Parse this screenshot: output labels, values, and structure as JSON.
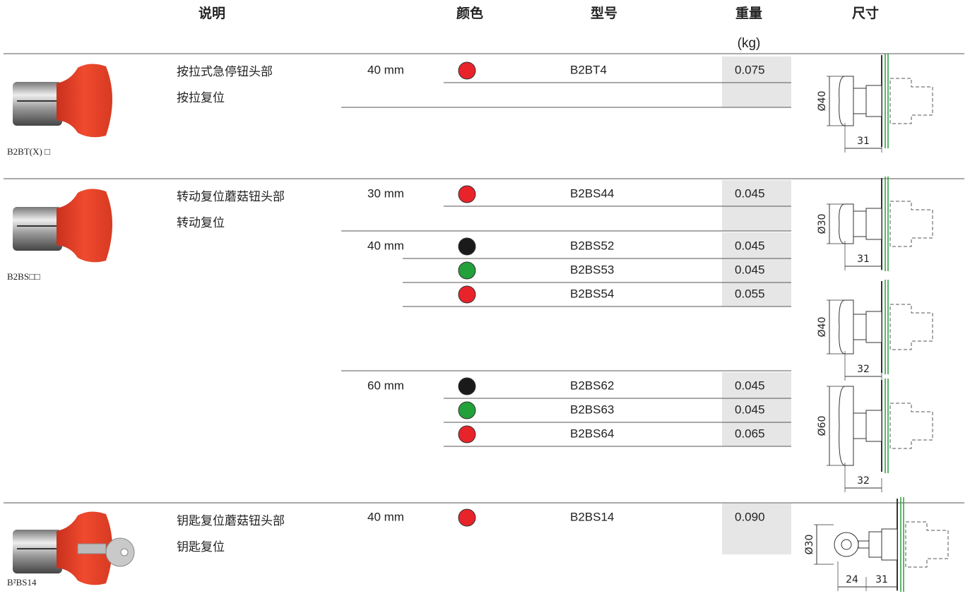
{
  "header": {
    "description": "说明",
    "color": "颜色",
    "model": "型号",
    "weight": "重量",
    "weight_unit": "(kg)",
    "dimensions": "尺寸"
  },
  "groups": [
    {
      "caption": "B2BT(X) □",
      "description": [
        "按拉式急停钮头部",
        "按拉复位"
      ],
      "sizes": [
        {
          "size": "40 mm",
          "rows": [
            {
              "color": "#e8232a",
              "model": "B2BT4",
              "weight": "0.075"
            }
          ]
        }
      ],
      "drawings": [
        {
          "labels": [
            "Ø40",
            "31"
          ]
        }
      ]
    },
    {
      "caption": "B2BS□□",
      "description": [
        "转动复位蘑菇钮头部",
        "转动复位"
      ],
      "sizes": [
        {
          "size": "30 mm",
          "rows": [
            {
              "color": "#e8232a",
              "model": "B2BS44",
              "weight": "0.045"
            }
          ]
        },
        {
          "size": "40 mm",
          "rows": [
            {
              "color": "#1a1a1a",
              "model": "B2BS52",
              "weight": "0.045"
            },
            {
              "color": "#22a03a",
              "model": "B2BS53",
              "weight": "0.045"
            },
            {
              "color": "#e8232a",
              "model": "B2BS54",
              "weight": "0.055"
            }
          ]
        },
        {
          "size": "60 mm",
          "rows": [
            {
              "color": "#1a1a1a",
              "model": "B2BS62",
              "weight": "0.045"
            },
            {
              "color": "#22a03a",
              "model": "B2BS63",
              "weight": "0.045"
            },
            {
              "color": "#e8232a",
              "model": "B2BS64",
              "weight": "0.065"
            }
          ]
        }
      ],
      "drawings": [
        {
          "labels": [
            "Ø30",
            "31"
          ]
        },
        {
          "labels": [
            "Ø40",
            "32"
          ]
        },
        {
          "labels": [
            "Ø60",
            "32"
          ]
        }
      ]
    },
    {
      "caption": "B²BS14",
      "description": [
        "钥匙复位蘑菇钮头部",
        "钥匙复位"
      ],
      "sizes": [
        {
          "size": "40 mm",
          "rows": [
            {
              "color": "#e8232a",
              "model": "B2BS14",
              "weight": "0.090"
            }
          ]
        }
      ],
      "drawings": [
        {
          "labels": [
            "Ø30",
            "24",
            "31"
          ]
        }
      ]
    }
  ]
}
